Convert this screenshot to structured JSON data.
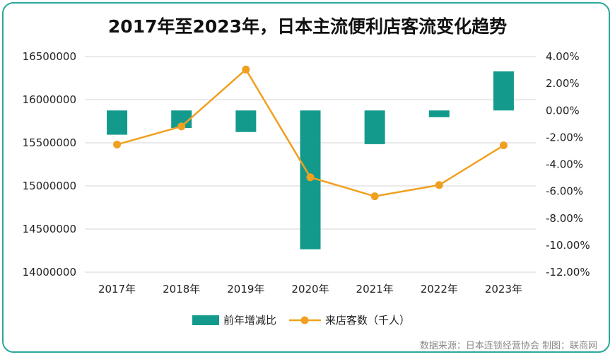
{
  "chart_data": {
    "type": "bar+line",
    "title": "2017年至2023年，日本主流便利店客流变化趋势",
    "categories": [
      "2017年",
      "2018年",
      "2019年",
      "2020年",
      "2021年",
      "2022年",
      "2023年"
    ],
    "series": [
      {
        "name": "前年增减比",
        "type": "bar",
        "axis": "right",
        "color": "#149a8c",
        "values": [
          -1.8,
          -1.3,
          -1.6,
          -10.3,
          -2.5,
          -0.5,
          2.9
        ]
      },
      {
        "name": "来店客数（千人）",
        "type": "line",
        "axis": "left",
        "color": "#f0a020",
        "values": [
          15480000,
          15690000,
          16350000,
          15100000,
          14880000,
          15010000,
          15470000
        ]
      }
    ],
    "y_left": {
      "ylim": [
        14000000,
        16500000
      ],
      "ticks": [
        "14000000",
        "14500000",
        "15000000",
        "15500000",
        "16000000",
        "16500000"
      ]
    },
    "y_right": {
      "ylim": [
        -12,
        4
      ],
      "ticks": [
        "4.00%",
        "2.00%",
        "0.00%",
        "-2.00%",
        "-4.00%",
        "-6.00%",
        "-8.00%",
        "-10.00%",
        "-12.00%"
      ]
    },
    "grid": true,
    "legend": "bottom-center"
  },
  "source_note": "数据来源：日本连锁经营协会  制图：联商网"
}
